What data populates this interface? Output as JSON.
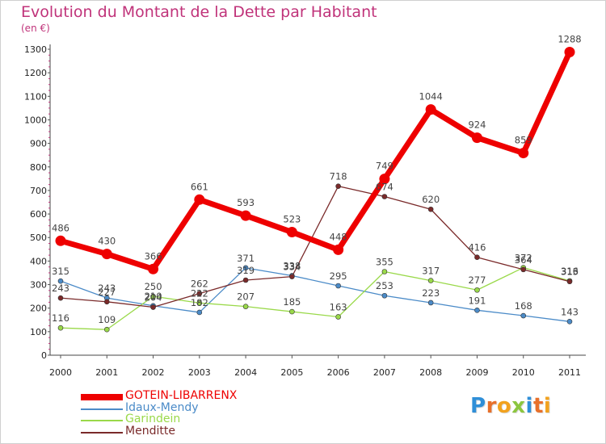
{
  "title": "Evolution du Montant de la Dette par Habitant",
  "subtitle": "(en €)",
  "logo": "Proxiti",
  "chart_data": {
    "type": "line",
    "x": [
      "2000",
      "2001",
      "2002",
      "2003",
      "2004",
      "2005",
      "2006",
      "2007",
      "2008",
      "2009",
      "2010",
      "2011"
    ],
    "ylim": [
      0,
      1300
    ],
    "yticks": [
      0,
      100,
      200,
      300,
      400,
      500,
      600,
      700,
      800,
      900,
      1000,
      1100,
      1200,
      1300
    ],
    "grid": false,
    "legend_position": "bottom-left",
    "series": [
      {
        "name": "GOTEIN-LIBARRENX",
        "color": "#ee0000",
        "values": [
          486,
          430,
          366,
          661,
          593,
          523,
          448,
          749,
          1044,
          924,
          859,
          1288
        ]
      },
      {
        "name": "Idaux-Mendy",
        "color": "#4b8bc8",
        "values": [
          315,
          243,
          210,
          182,
          371,
          338,
          295,
          253,
          223,
          191,
          168,
          143
        ]
      },
      {
        "name": "Garindein",
        "color": "#9ad94a",
        "values": [
          116,
          109,
          250,
          222,
          207,
          185,
          163,
          355,
          317,
          277,
          372,
          316
        ]
      },
      {
        "name": "Menditte",
        "color": "#7a2a2a",
        "values": [
          243,
          227,
          204,
          262,
          319,
          334,
          718,
          674,
          620,
          416,
          364,
          313
        ]
      }
    ]
  }
}
